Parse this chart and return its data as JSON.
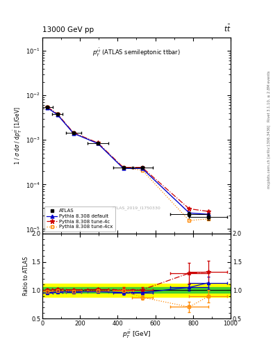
{
  "title_top": "13000 GeV pp",
  "title_right": "tt̅",
  "xlabel": "p_{T}^{tbar(t)} [GeV]",
  "ylabel_main": "1 / #sigma d#sigma / dp_{T}^{tbar(t)} [1/GeV]",
  "ylabel_ratio": "Ratio to ATLAS",
  "watermark": "ATLAS_2019_I1750330",
  "right_label1": "Rivet 3.1.10, ≥ 2.8M events",
  "right_label2": "mcplots.cern.ch [arXiv:1306.3436]",
  "xlim": [
    0,
    1000
  ],
  "ylim_main": [
    8e-06,
    0.2
  ],
  "ylim_ratio": [
    0.5,
    2.0
  ],
  "atlas_x": [
    27,
    80,
    165,
    295,
    430,
    530,
    780,
    880
  ],
  "atlas_y": [
    0.0055,
    0.0038,
    0.00145,
    0.00085,
    0.00024,
    0.00024,
    2.2e-05,
    1.9e-05
  ],
  "atlas_yerr": [
    0.00025,
    0.0002,
    7e-05,
    4e-05,
    1.2e-05,
    1.2e-05,
    2.5e-06,
    2.5e-06
  ],
  "atlas_xerr": [
    27,
    27,
    40,
    55,
    55,
    55,
    100,
    100
  ],
  "pythia_default_x": [
    27,
    80,
    165,
    295,
    430,
    530,
    780,
    880
  ],
  "pythia_default_y": [
    0.00525,
    0.0037,
    0.00141,
    0.00083,
    0.00023,
    0.00023,
    2.3e-05,
    2.15e-05
  ],
  "pythia_4c_x": [
    27,
    80,
    165,
    295,
    430,
    530,
    780,
    880
  ],
  "pythia_4c_y": [
    0.0055,
    0.00385,
    0.00146,
    0.00086,
    0.000242,
    0.000242,
    2.85e-05,
    2.5e-05
  ],
  "pythia_4cx_x": [
    27,
    80,
    165,
    295,
    430,
    530,
    780,
    880
  ],
  "pythia_4cx_y": [
    0.0054,
    0.00375,
    0.00143,
    0.00084,
    0.000238,
    0.00021,
    1.55e-05,
    1.7e-05
  ],
  "ratio_default_y": [
    0.955,
    0.974,
    0.972,
    0.976,
    0.958,
    0.958,
    1.05,
    1.13
  ],
  "ratio_4c_y": [
    1.0,
    1.013,
    1.007,
    1.012,
    1.008,
    1.008,
    1.3,
    1.32
  ],
  "ratio_4cx_y": [
    0.98,
    0.987,
    0.986,
    0.988,
    0.992,
    0.875,
    0.705,
    0.89
  ],
  "ratio_default_yerr": [
    0.025,
    0.015,
    0.015,
    0.015,
    0.035,
    0.035,
    0.055,
    0.11
  ],
  "ratio_4c_yerr": [
    0.025,
    0.015,
    0.015,
    0.015,
    0.045,
    0.045,
    0.18,
    0.2
  ],
  "ratio_4cx_yerr": [
    0.025,
    0.015,
    0.015,
    0.015,
    0.045,
    0.045,
    0.09,
    0.11
  ],
  "green_y1": 0.95,
  "green_y2": 1.05,
  "yellow_y1": 0.88,
  "yellow_y2": 1.12,
  "color_atlas": "#000000",
  "color_default": "#0000cc",
  "color_4c": "#cc0000",
  "color_4cx": "#ff8800",
  "color_green": "#33cc33",
  "color_yellow": "#ffff00",
  "bg_color": "#ffffff"
}
